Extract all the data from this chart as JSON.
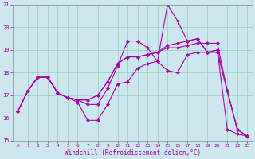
{
  "xlabel": "Windchill (Refroidissement éolien,°C)",
  "bg_color": "#cce8ee",
  "line_color": "#aa00aa",
  "grid_color": "#99ccbb",
  "xmin": -0.5,
  "xmax": 23.5,
  "ymin": 15,
  "ymax": 21,
  "yticks": [
    15,
    16,
    17,
    18,
    19,
    20,
    21
  ],
  "xticks": [
    0,
    1,
    2,
    3,
    4,
    5,
    6,
    7,
    8,
    9,
    10,
    11,
    12,
    13,
    14,
    15,
    16,
    17,
    18,
    19,
    20,
    21,
    22,
    23
  ],
  "series": [
    {
      "x": [
        0,
        1,
        2,
        3,
        4,
        5,
        6,
        7,
        8,
        9,
        10,
        11,
        12,
        13,
        14,
        15,
        16,
        17,
        18,
        19,
        20,
        21,
        22,
        23
      ],
      "y": [
        16.3,
        17.2,
        17.8,
        17.8,
        17.1,
        16.9,
        16.7,
        15.9,
        15.9,
        16.6,
        17.5,
        17.6,
        18.2,
        18.4,
        18.5,
        18.1,
        18.0,
        18.8,
        18.9,
        18.9,
        19.0,
        15.5,
        15.3,
        15.2
      ]
    },
    {
      "x": [
        0,
        1,
        2,
        3,
        4,
        5,
        6,
        7,
        8,
        9,
        10,
        11,
        12,
        13,
        14,
        15,
        16,
        17,
        18,
        19,
        20,
        21,
        22,
        23
      ],
      "y": [
        16.3,
        17.2,
        17.8,
        17.8,
        17.1,
        16.9,
        16.8,
        16.6,
        16.6,
        17.3,
        18.3,
        19.4,
        19.4,
        19.1,
        18.5,
        21.0,
        20.3,
        19.4,
        19.5,
        18.9,
        19.0,
        17.2,
        15.5,
        15.2
      ]
    },
    {
      "x": [
        0,
        1,
        2,
        3,
        4,
        5,
        6,
        7,
        8,
        9,
        10,
        11,
        12,
        13,
        14,
        15,
        16,
        17,
        18,
        19,
        20,
        21,
        22,
        23
      ],
      "y": [
        16.3,
        17.2,
        17.8,
        17.8,
        17.1,
        16.9,
        16.8,
        16.8,
        17.0,
        17.6,
        18.4,
        18.7,
        18.7,
        18.8,
        18.9,
        19.1,
        19.1,
        19.2,
        19.3,
        19.3,
        19.3,
        17.2,
        15.5,
        15.2
      ]
    },
    {
      "x": [
        0,
        1,
        2,
        3,
        4,
        5,
        6,
        7,
        8,
        9,
        10,
        11,
        12,
        13,
        14,
        15,
        16,
        17,
        18,
        19,
        20,
        21,
        22,
        23
      ],
      "y": [
        16.3,
        17.2,
        17.8,
        17.8,
        17.1,
        16.9,
        16.8,
        16.8,
        17.0,
        17.6,
        18.4,
        18.7,
        18.7,
        18.8,
        18.9,
        19.2,
        19.3,
        19.4,
        19.5,
        18.9,
        18.9,
        17.2,
        15.5,
        15.2
      ]
    }
  ],
  "xlabel_fontsize": 5.5,
  "tick_fontsize": 5.0,
  "linewidth": 0.8,
  "markersize": 2.2
}
